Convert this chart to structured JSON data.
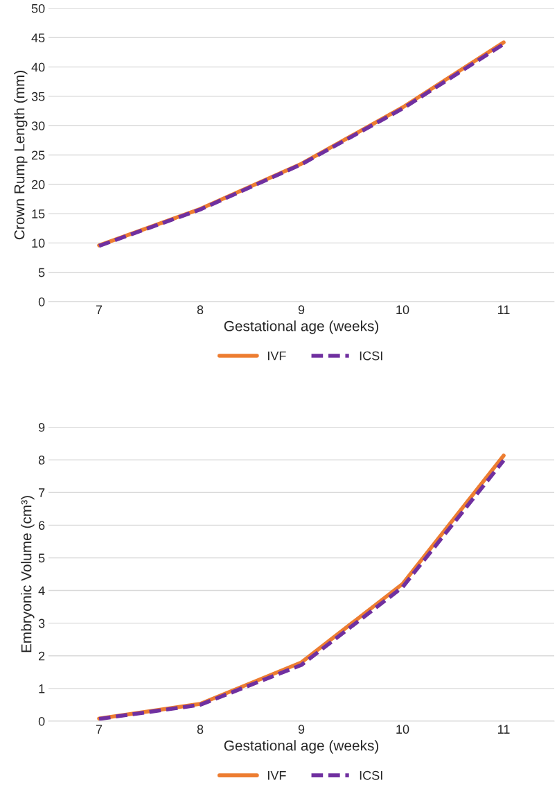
{
  "chart_data": [
    {
      "type": "line",
      "categories": [
        "7",
        "8",
        "9",
        "10",
        "11"
      ],
      "xlabel": "Gestational age (weeks)",
      "ylabel": "Crown Rump Length (mm)",
      "ylim": [
        0,
        50
      ],
      "yticks": [
        0,
        5,
        10,
        15,
        20,
        25,
        30,
        35,
        40,
        45,
        50
      ],
      "grid": "y",
      "legend": "bottom",
      "marker": "none",
      "series": [
        {
          "name": "IVF",
          "color": "#ed7d31",
          "line_style": "solid",
          "values": [
            9.6,
            15.8,
            23.5,
            33.1,
            44.2
          ]
        },
        {
          "name": "ICSI",
          "color": "#7030a0",
          "line_style": "dashed",
          "values": [
            9.5,
            15.7,
            23.4,
            32.9,
            43.9
          ]
        }
      ]
    },
    {
      "type": "line",
      "categories": [
        "7",
        "8",
        "9",
        "10",
        "11"
      ],
      "xlabel": "Gestational age (weeks)",
      "ylabel": "Embryonic Volume (cm³)",
      "ylim": [
        0,
        9
      ],
      "yticks": [
        0,
        1,
        2,
        3,
        4,
        5,
        6,
        7,
        8,
        9
      ],
      "grid": "y",
      "legend": "bottom",
      "marker": "none",
      "series": [
        {
          "name": "IVF",
          "color": "#ed7d31",
          "line_style": "solid",
          "values": [
            0.08,
            0.53,
            1.8,
            4.2,
            8.13
          ]
        },
        {
          "name": "ICSI",
          "color": "#7030a0",
          "line_style": "dashed",
          "values": [
            0.07,
            0.5,
            1.72,
            4.1,
            7.98
          ]
        }
      ]
    }
  ]
}
